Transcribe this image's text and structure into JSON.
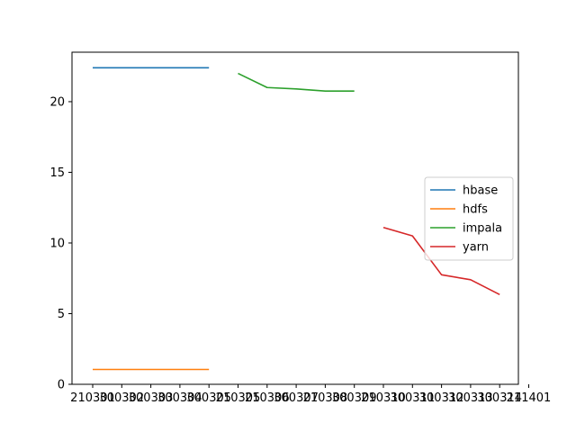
{
  "chart_data": {
    "type": "line",
    "x_categories": [
      "210301",
      "300302",
      "300303",
      "300304",
      "300305",
      "210305",
      "210306",
      "300307",
      "210308",
      "300309",
      "210310",
      "300311",
      "300312",
      "300313",
      "300314",
      "211401"
    ],
    "x_tick_labels": [
      "210301",
      "300302",
      "300303",
      "300304",
      "300305",
      "210305",
      "210306",
      "300307",
      "210308",
      "300309",
      "210310",
      "300311",
      "300312",
      "300313",
      "300314",
      "211401"
    ],
    "series": [
      {
        "name": "hbase",
        "color": "#1f77b4",
        "start_index": 0,
        "values": [
          22.4,
          22.4,
          22.4,
          22.4,
          22.4
        ]
      },
      {
        "name": "hdfs",
        "color": "#ff7f0e",
        "start_index": 0,
        "values": [
          1.05,
          1.05,
          1.05,
          1.05,
          1.05
        ]
      },
      {
        "name": "impala",
        "color": "#2ca02c",
        "start_index": 5,
        "values": [
          22.0,
          21.0,
          20.9,
          20.75,
          20.75
        ]
      },
      {
        "name": "yarn",
        "color": "#d62728",
        "start_index": 10,
        "values": [
          11.1,
          10.5,
          7.75,
          7.4,
          6.35
        ]
      }
    ],
    "y_ticks": [
      0,
      5,
      10,
      15,
      20
    ],
    "ylim": [
      0,
      23.5
    ],
    "title": "",
    "xlabel": "",
    "ylabel": "",
    "legend_position": "center-right",
    "grid": false
  }
}
